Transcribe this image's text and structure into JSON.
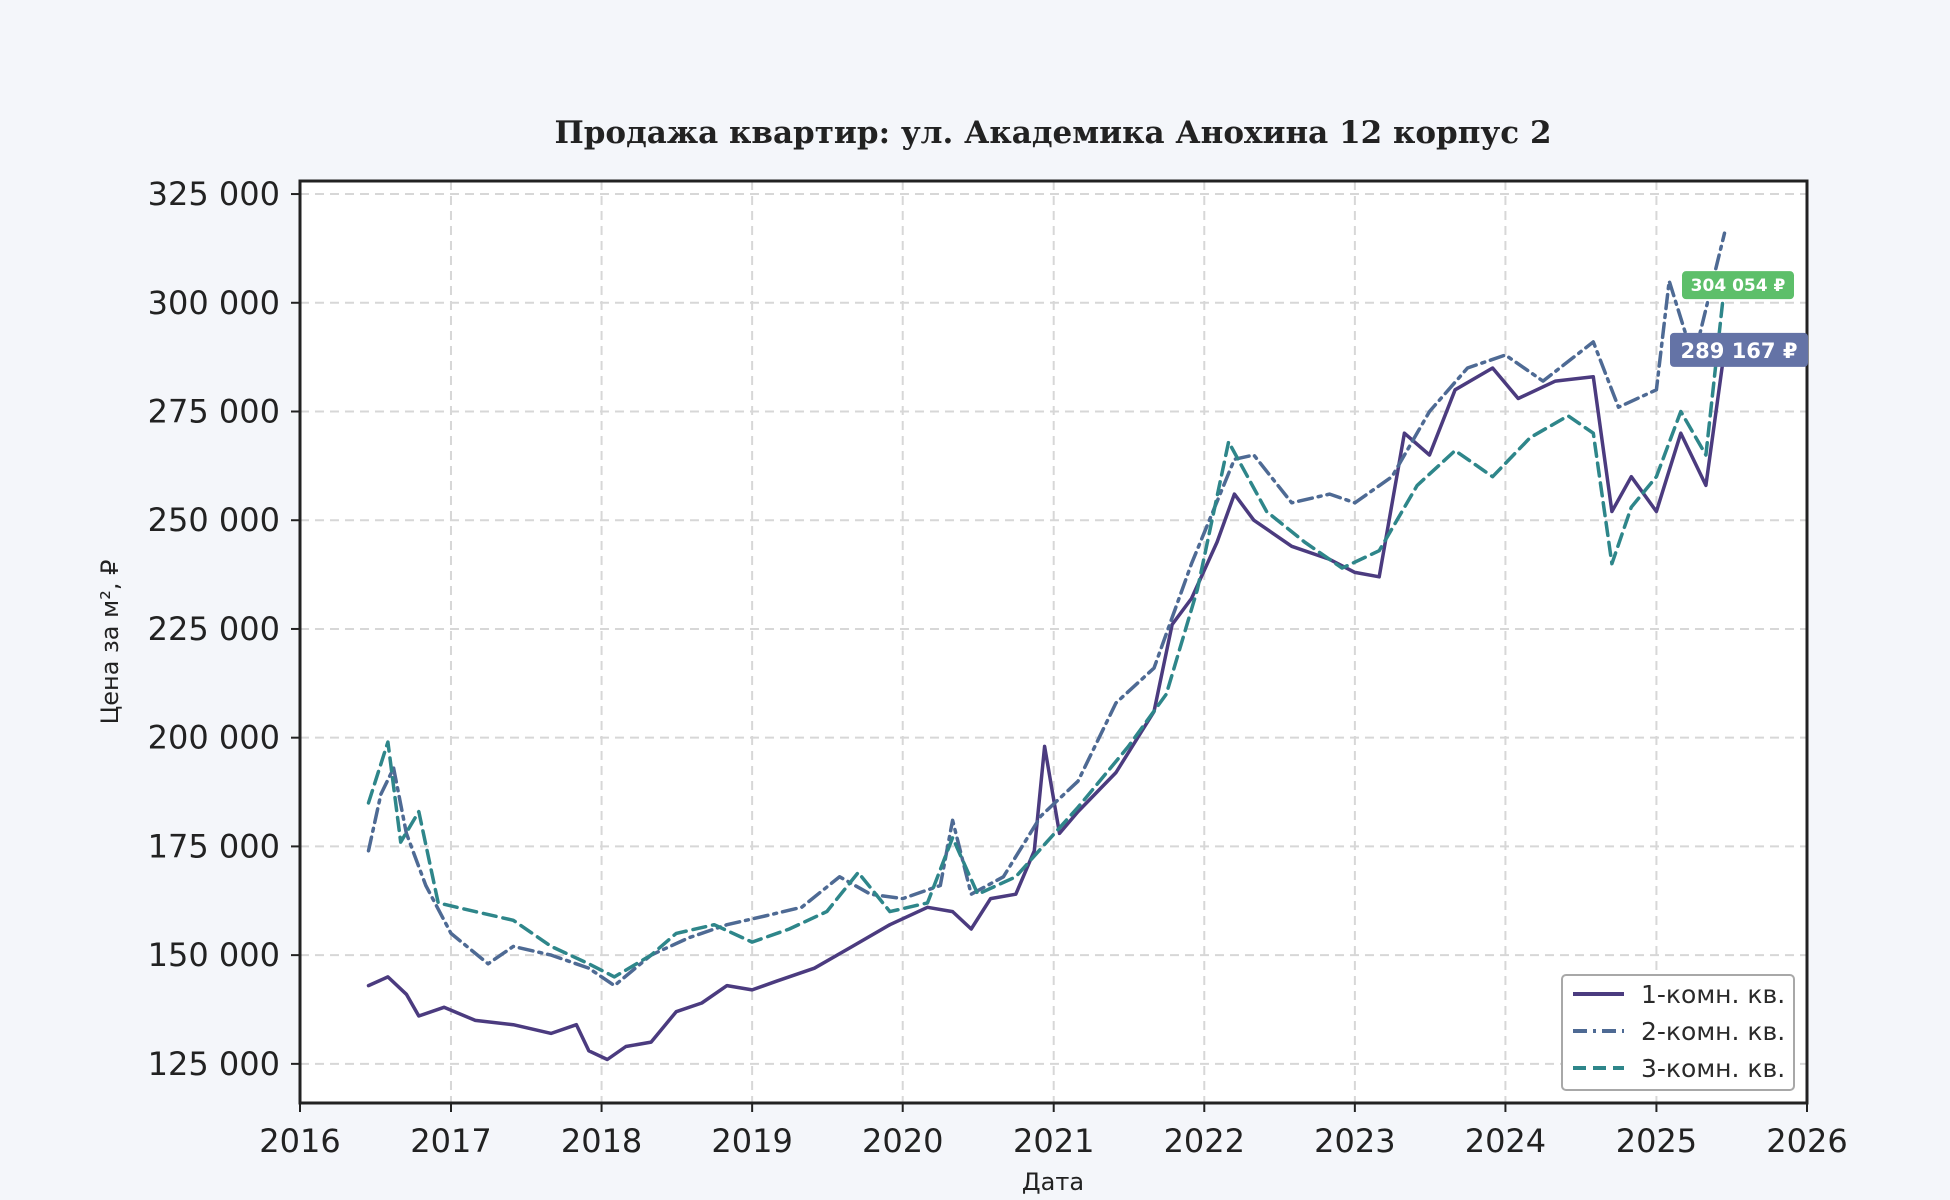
{
  "chart_data": {
    "type": "line",
    "title": "Продажа квартир: ул. Академика Анохина 12 корпус 2",
    "xlabel": "Дата",
    "ylabel": "Цена за м², ₽",
    "x_range": [
      "2016-01-01",
      "2026-01-01"
    ],
    "x_ticks": [
      "2016",
      "2017",
      "2018",
      "2019",
      "2020",
      "2021",
      "2022",
      "2023",
      "2024",
      "2025",
      "2026"
    ],
    "y_range": [
      116000,
      328000
    ],
    "y_ticks": [
      125000,
      150000,
      175000,
      200000,
      225000,
      250000,
      275000,
      300000,
      325000
    ],
    "y_tick_labels": [
      "125 000",
      "150 000",
      "175 000",
      "200 000",
      "225 000",
      "250 000",
      "275 000",
      "300 000",
      "325 000"
    ],
    "grid": true,
    "legend_position": "bottom-right",
    "series": [
      {
        "name": "1-комн. кв.",
        "color": "#4b3b7f",
        "style": "solid",
        "points": [
          [
            "2016-06-15",
            143000
          ],
          [
            "2016-08-01",
            145000
          ],
          [
            "2016-09-15",
            141000
          ],
          [
            "2016-10-15",
            136000
          ],
          [
            "2016-12-15",
            138000
          ],
          [
            "2017-03-01",
            135000
          ],
          [
            "2017-06-01",
            134000
          ],
          [
            "2017-09-01",
            132000
          ],
          [
            "2017-11-01",
            134000
          ],
          [
            "2017-12-01",
            128000
          ],
          [
            "2018-01-15",
            126000
          ],
          [
            "2018-03-01",
            129000
          ],
          [
            "2018-05-01",
            130000
          ],
          [
            "2018-07-01",
            137000
          ],
          [
            "2018-09-01",
            139000
          ],
          [
            "2018-11-01",
            143000
          ],
          [
            "2019-01-01",
            142000
          ],
          [
            "2019-03-01",
            144000
          ],
          [
            "2019-06-01",
            147000
          ],
          [
            "2019-09-01",
            152000
          ],
          [
            "2019-12-01",
            157000
          ],
          [
            "2020-03-01",
            161000
          ],
          [
            "2020-05-01",
            160000
          ],
          [
            "2020-06-15",
            156000
          ],
          [
            "2020-08-01",
            163000
          ],
          [
            "2020-10-01",
            164000
          ],
          [
            "2020-11-15",
            174000
          ],
          [
            "2020-12-10",
            198000
          ],
          [
            "2021-01-15",
            178000
          ],
          [
            "2021-03-01",
            183000
          ],
          [
            "2021-06-01",
            192000
          ],
          [
            "2021-09-01",
            206000
          ],
          [
            "2021-10-15",
            226000
          ],
          [
            "2021-12-01",
            232000
          ],
          [
            "2022-02-01",
            245000
          ],
          [
            "2022-03-15",
            256000
          ],
          [
            "2022-05-01",
            250000
          ],
          [
            "2022-08-01",
            244000
          ],
          [
            "2022-11-01",
            241000
          ],
          [
            "2023-01-01",
            238000
          ],
          [
            "2023-03-01",
            237000
          ],
          [
            "2023-05-01",
            270000
          ],
          [
            "2023-07-01",
            265000
          ],
          [
            "2023-09-01",
            280000
          ],
          [
            "2023-12-01",
            285000
          ],
          [
            "2024-02-01",
            278000
          ],
          [
            "2024-05-01",
            282000
          ],
          [
            "2024-08-01",
            283000
          ],
          [
            "2024-09-15",
            252000
          ],
          [
            "2024-11-01",
            260000
          ],
          [
            "2025-01-01",
            252000
          ],
          [
            "2025-03-01",
            270000
          ],
          [
            "2025-05-01",
            258000
          ],
          [
            "2025-06-15",
            289167
          ]
        ]
      },
      {
        "name": "2-комн. кв.",
        "color": "#4e6a94",
        "style": "dashdot",
        "points": [
          [
            "2016-06-15",
            174000
          ],
          [
            "2016-07-15",
            187000
          ],
          [
            "2016-08-15",
            193000
          ],
          [
            "2016-09-15",
            178000
          ],
          [
            "2016-11-01",
            166000
          ],
          [
            "2017-01-01",
            155000
          ],
          [
            "2017-04-01",
            148000
          ],
          [
            "2017-06-01",
            152000
          ],
          [
            "2017-09-01",
            150000
          ],
          [
            "2017-12-01",
            147000
          ],
          [
            "2018-02-01",
            143000
          ],
          [
            "2018-05-01",
            150000
          ],
          [
            "2018-08-01",
            154000
          ],
          [
            "2018-11-01",
            157000
          ],
          [
            "2019-02-01",
            159000
          ],
          [
            "2019-05-01",
            161000
          ],
          [
            "2019-08-01",
            168000
          ],
          [
            "2019-10-15",
            164000
          ],
          [
            "2020-01-01",
            163000
          ],
          [
            "2020-04-01",
            166000
          ],
          [
            "2020-05-01",
            181000
          ],
          [
            "2020-06-15",
            164000
          ],
          [
            "2020-09-01",
            168000
          ],
          [
            "2020-12-01",
            182000
          ],
          [
            "2021-03-01",
            190000
          ],
          [
            "2021-06-01",
            208000
          ],
          [
            "2021-09-01",
            216000
          ],
          [
            "2021-12-01",
            240000
          ],
          [
            "2022-03-15",
            264000
          ],
          [
            "2022-05-01",
            265000
          ],
          [
            "2022-08-01",
            254000
          ],
          [
            "2022-11-01",
            256000
          ],
          [
            "2023-01-01",
            254000
          ],
          [
            "2023-04-01",
            260000
          ],
          [
            "2023-07-01",
            275000
          ],
          [
            "2023-10-01",
            285000
          ],
          [
            "2024-01-01",
            288000
          ],
          [
            "2024-04-01",
            282000
          ],
          [
            "2024-08-01",
            291000
          ],
          [
            "2024-10-01",
            276000
          ],
          [
            "2025-01-01",
            280000
          ],
          [
            "2025-02-01",
            305000
          ],
          [
            "2025-04-01",
            287000
          ],
          [
            "2025-06-15",
            316000
          ]
        ]
      },
      {
        "name": "3-комн. кв.",
        "color": "#2e868a",
        "style": "dashed",
        "points": [
          [
            "2016-06-15",
            185000
          ],
          [
            "2016-08-01",
            199000
          ],
          [
            "2016-09-01",
            176000
          ],
          [
            "2016-10-15",
            183000
          ],
          [
            "2016-12-01",
            162000
          ],
          [
            "2017-03-01",
            160000
          ],
          [
            "2017-06-01",
            158000
          ],
          [
            "2017-09-01",
            152000
          ],
          [
            "2017-12-01",
            148000
          ],
          [
            "2018-02-01",
            145000
          ],
          [
            "2018-05-01",
            150000
          ],
          [
            "2018-07-01",
            155000
          ],
          [
            "2018-10-01",
            157000
          ],
          [
            "2019-01-01",
            153000
          ],
          [
            "2019-04-01",
            156000
          ],
          [
            "2019-07-01",
            160000
          ],
          [
            "2019-09-15",
            169000
          ],
          [
            "2019-12-01",
            160000
          ],
          [
            "2020-03-01",
            162000
          ],
          [
            "2020-05-01",
            177000
          ],
          [
            "2020-07-01",
            164000
          ],
          [
            "2020-10-01",
            168000
          ],
          [
            "2020-12-15",
            176000
          ],
          [
            "2021-03-01",
            184000
          ],
          [
            "2021-07-01",
            198000
          ],
          [
            "2021-10-01",
            210000
          ],
          [
            "2021-12-15",
            234000
          ],
          [
            "2022-03-01",
            268000
          ],
          [
            "2022-06-01",
            252000
          ],
          [
            "2022-09-01",
            245000
          ],
          [
            "2022-12-01",
            239000
          ],
          [
            "2023-03-01",
            243000
          ],
          [
            "2023-06-01",
            258000
          ],
          [
            "2023-09-01",
            266000
          ],
          [
            "2023-12-01",
            260000
          ],
          [
            "2024-03-01",
            269000
          ],
          [
            "2024-06-01",
            274000
          ],
          [
            "2024-08-01",
            270000
          ],
          [
            "2024-09-15",
            240000
          ],
          [
            "2024-11-01",
            253000
          ],
          [
            "2025-01-01",
            260000
          ],
          [
            "2025-03-01",
            275000
          ],
          [
            "2025-05-01",
            265000
          ],
          [
            "2025-06-15",
            304054
          ]
        ]
      }
    ],
    "last_value_labels": [
      {
        "series": "3-комн. кв.",
        "value": 304054,
        "text": "304 054 ₽",
        "color": "#5dbf6a"
      },
      {
        "series": "1-комн. кв.",
        "value": 289167,
        "text": "289 167 ₽",
        "color": "#6473a6"
      }
    ]
  }
}
